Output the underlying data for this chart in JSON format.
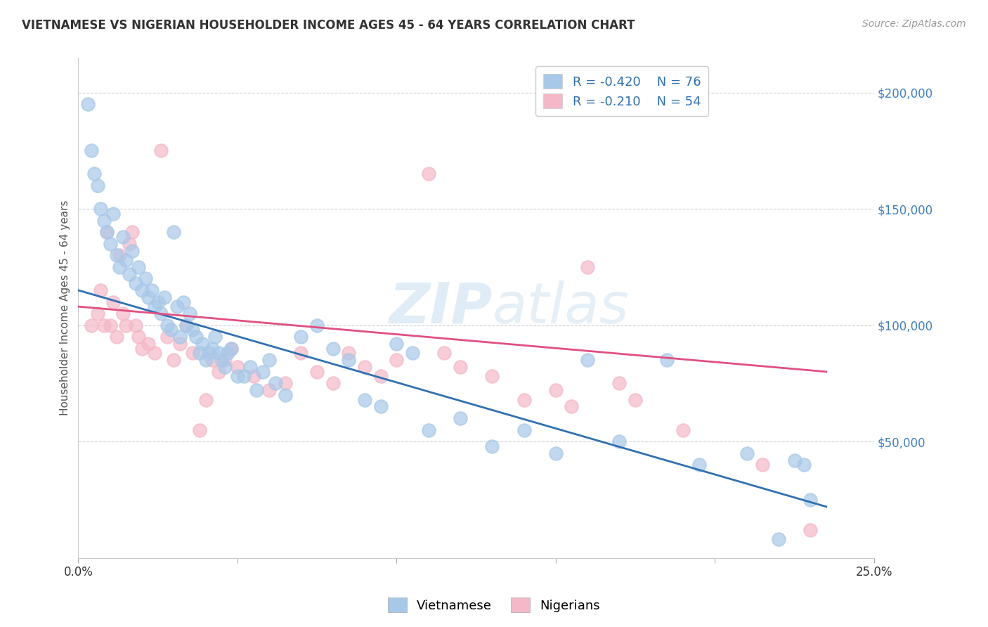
{
  "title": "VIETNAMESE VS NIGERIAN HOUSEHOLDER INCOME AGES 45 - 64 YEARS CORRELATION CHART",
  "source": "Source: ZipAtlas.com",
  "ylabel": "Householder Income Ages 45 - 64 years",
  "xlim": [
    0.0,
    0.25
  ],
  "ylim": [
    0,
    215000
  ],
  "background_color": "#ffffff",
  "legend_R1": "-0.420",
  "legend_N1": "76",
  "legend_R2": "-0.210",
  "legend_N2": "54",
  "blue_scatter_color": "#a8c8e8",
  "pink_scatter_color": "#f4b8c8",
  "blue_line_color": "#3070b0",
  "pink_line_color": "#e05080",
  "ytick_color": "#4080c0",
  "vietnamese_x": [
    0.003,
    0.004,
    0.005,
    0.006,
    0.007,
    0.008,
    0.009,
    0.01,
    0.011,
    0.012,
    0.013,
    0.014,
    0.015,
    0.016,
    0.017,
    0.018,
    0.019,
    0.02,
    0.021,
    0.022,
    0.023,
    0.024,
    0.025,
    0.026,
    0.027,
    0.028,
    0.029,
    0.03,
    0.031,
    0.032,
    0.033,
    0.034,
    0.035,
    0.036,
    0.037,
    0.038,
    0.039,
    0.04,
    0.041,
    0.042,
    0.043,
    0.044,
    0.045,
    0.046,
    0.047,
    0.048,
    0.05,
    0.052,
    0.054,
    0.056,
    0.058,
    0.06,
    0.062,
    0.065,
    0.07,
    0.075,
    0.08,
    0.085,
    0.09,
    0.095,
    0.1,
    0.105,
    0.11,
    0.12,
    0.13,
    0.14,
    0.15,
    0.16,
    0.17,
    0.185,
    0.195,
    0.21,
    0.22,
    0.225,
    0.228,
    0.23
  ],
  "vietnamese_y": [
    195000,
    175000,
    165000,
    160000,
    150000,
    145000,
    140000,
    135000,
    148000,
    130000,
    125000,
    138000,
    128000,
    122000,
    132000,
    118000,
    125000,
    115000,
    120000,
    112000,
    115000,
    108000,
    110000,
    105000,
    112000,
    100000,
    98000,
    140000,
    108000,
    95000,
    110000,
    100000,
    105000,
    98000,
    95000,
    88000,
    92000,
    85000,
    88000,
    90000,
    95000,
    88000,
    85000,
    82000,
    88000,
    90000,
    78000,
    78000,
    82000,
    72000,
    80000,
    85000,
    75000,
    70000,
    95000,
    100000,
    90000,
    85000,
    68000,
    65000,
    92000,
    88000,
    55000,
    60000,
    48000,
    55000,
    45000,
    85000,
    50000,
    85000,
    40000,
    45000,
    8000,
    42000,
    40000,
    25000
  ],
  "nigerian_x": [
    0.004,
    0.006,
    0.007,
    0.008,
    0.009,
    0.01,
    0.011,
    0.012,
    0.013,
    0.014,
    0.015,
    0.016,
    0.017,
    0.018,
    0.019,
    0.02,
    0.022,
    0.024,
    0.026,
    0.028,
    0.03,
    0.032,
    0.034,
    0.036,
    0.038,
    0.04,
    0.042,
    0.044,
    0.046,
    0.048,
    0.05,
    0.055,
    0.06,
    0.065,
    0.07,
    0.075,
    0.08,
    0.085,
    0.09,
    0.095,
    0.1,
    0.11,
    0.115,
    0.12,
    0.13,
    0.14,
    0.15,
    0.155,
    0.16,
    0.17,
    0.175,
    0.19,
    0.215,
    0.23
  ],
  "nigerian_y": [
    100000,
    105000,
    115000,
    100000,
    140000,
    100000,
    110000,
    95000,
    130000,
    105000,
    100000,
    135000,
    140000,
    100000,
    95000,
    90000,
    92000,
    88000,
    175000,
    95000,
    85000,
    92000,
    100000,
    88000,
    55000,
    68000,
    85000,
    80000,
    85000,
    90000,
    82000,
    78000,
    72000,
    75000,
    88000,
    80000,
    75000,
    88000,
    82000,
    78000,
    85000,
    165000,
    88000,
    82000,
    78000,
    68000,
    72000,
    65000,
    125000,
    75000,
    68000,
    55000,
    40000,
    12000
  ],
  "blue_trend_x0": 0.0,
  "blue_trend_x1": 0.235,
  "blue_trend_y0": 115000,
  "blue_trend_y1": 22000,
  "pink_trend_x0": 0.0,
  "pink_trend_x1": 0.235,
  "pink_trend_y0": 108000,
  "pink_trend_y1": 80000
}
